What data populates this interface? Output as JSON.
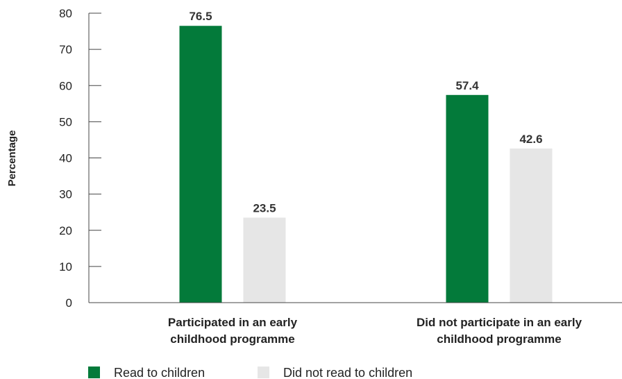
{
  "chart_data": {
    "type": "bar",
    "ylabel": "Percentage",
    "xlabel": "",
    "ylim": [
      0,
      80
    ],
    "yticks": [
      0,
      10,
      20,
      30,
      40,
      50,
      60,
      70,
      80
    ],
    "categories": [
      [
        "Participated in an early",
        "childhood programme"
      ],
      [
        "Did not participate in an early",
        "childhood programme"
      ]
    ],
    "series": [
      {
        "name": "Read to children",
        "color": "#037a3a",
        "values": [
          76.5,
          57.4
        ]
      },
      {
        "name": "Did not read to children",
        "color": "#e6e6e6",
        "values": [
          23.5,
          42.6
        ]
      }
    ],
    "grid": false,
    "legend_position": "bottom-left"
  }
}
